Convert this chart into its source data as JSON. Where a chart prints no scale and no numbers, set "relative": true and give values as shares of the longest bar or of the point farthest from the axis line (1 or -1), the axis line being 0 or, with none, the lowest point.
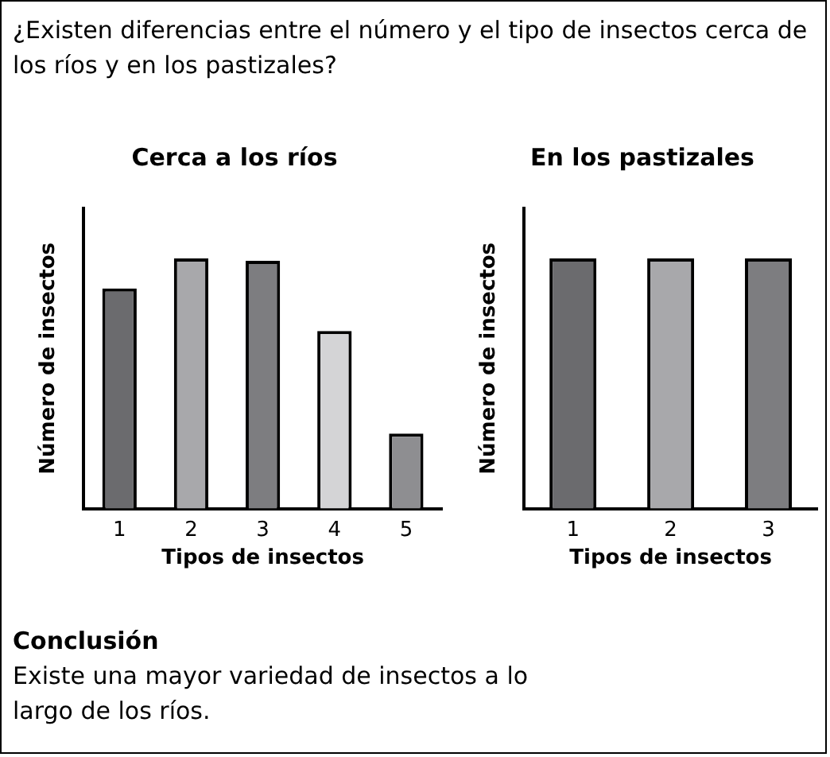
{
  "chart_data": [
    {
      "type": "bar",
      "title": "Cerca a los ríos",
      "xlabel": "Tipos de insectos",
      "ylabel": "Número de insectos",
      "relative": true,
      "categories": [
        "1",
        "2",
        "3",
        "4",
        "5"
      ],
      "values": [
        0.88,
        1,
        0.99,
        0.71,
        0.3
      ],
      "colors": [
        "#6b6b6e",
        "#a8a8ab",
        "#7d7d80",
        "#d4d4d6",
        "#8e8e91"
      ],
      "annotations": [
        "¿Existen diferencias entre el número y el tipo de insectos cerca de los ríos y en los pastizales?",
        "Conclusión",
        "Existe una mayor variedad de insectos a lo largo de los ríos."
      ]
    },
    {
      "type": "bar",
      "title": "En los pastizales",
      "xlabel": "Tipos de insectos",
      "ylabel": "Número de insectos",
      "relative": true,
      "categories": [
        "1",
        "2",
        "3"
      ],
      "values": [
        1,
        1,
        1
      ],
      "colors": [
        "#6b6b6e",
        "#a8a8ab",
        "#7d7d80"
      ]
    }
  ]
}
